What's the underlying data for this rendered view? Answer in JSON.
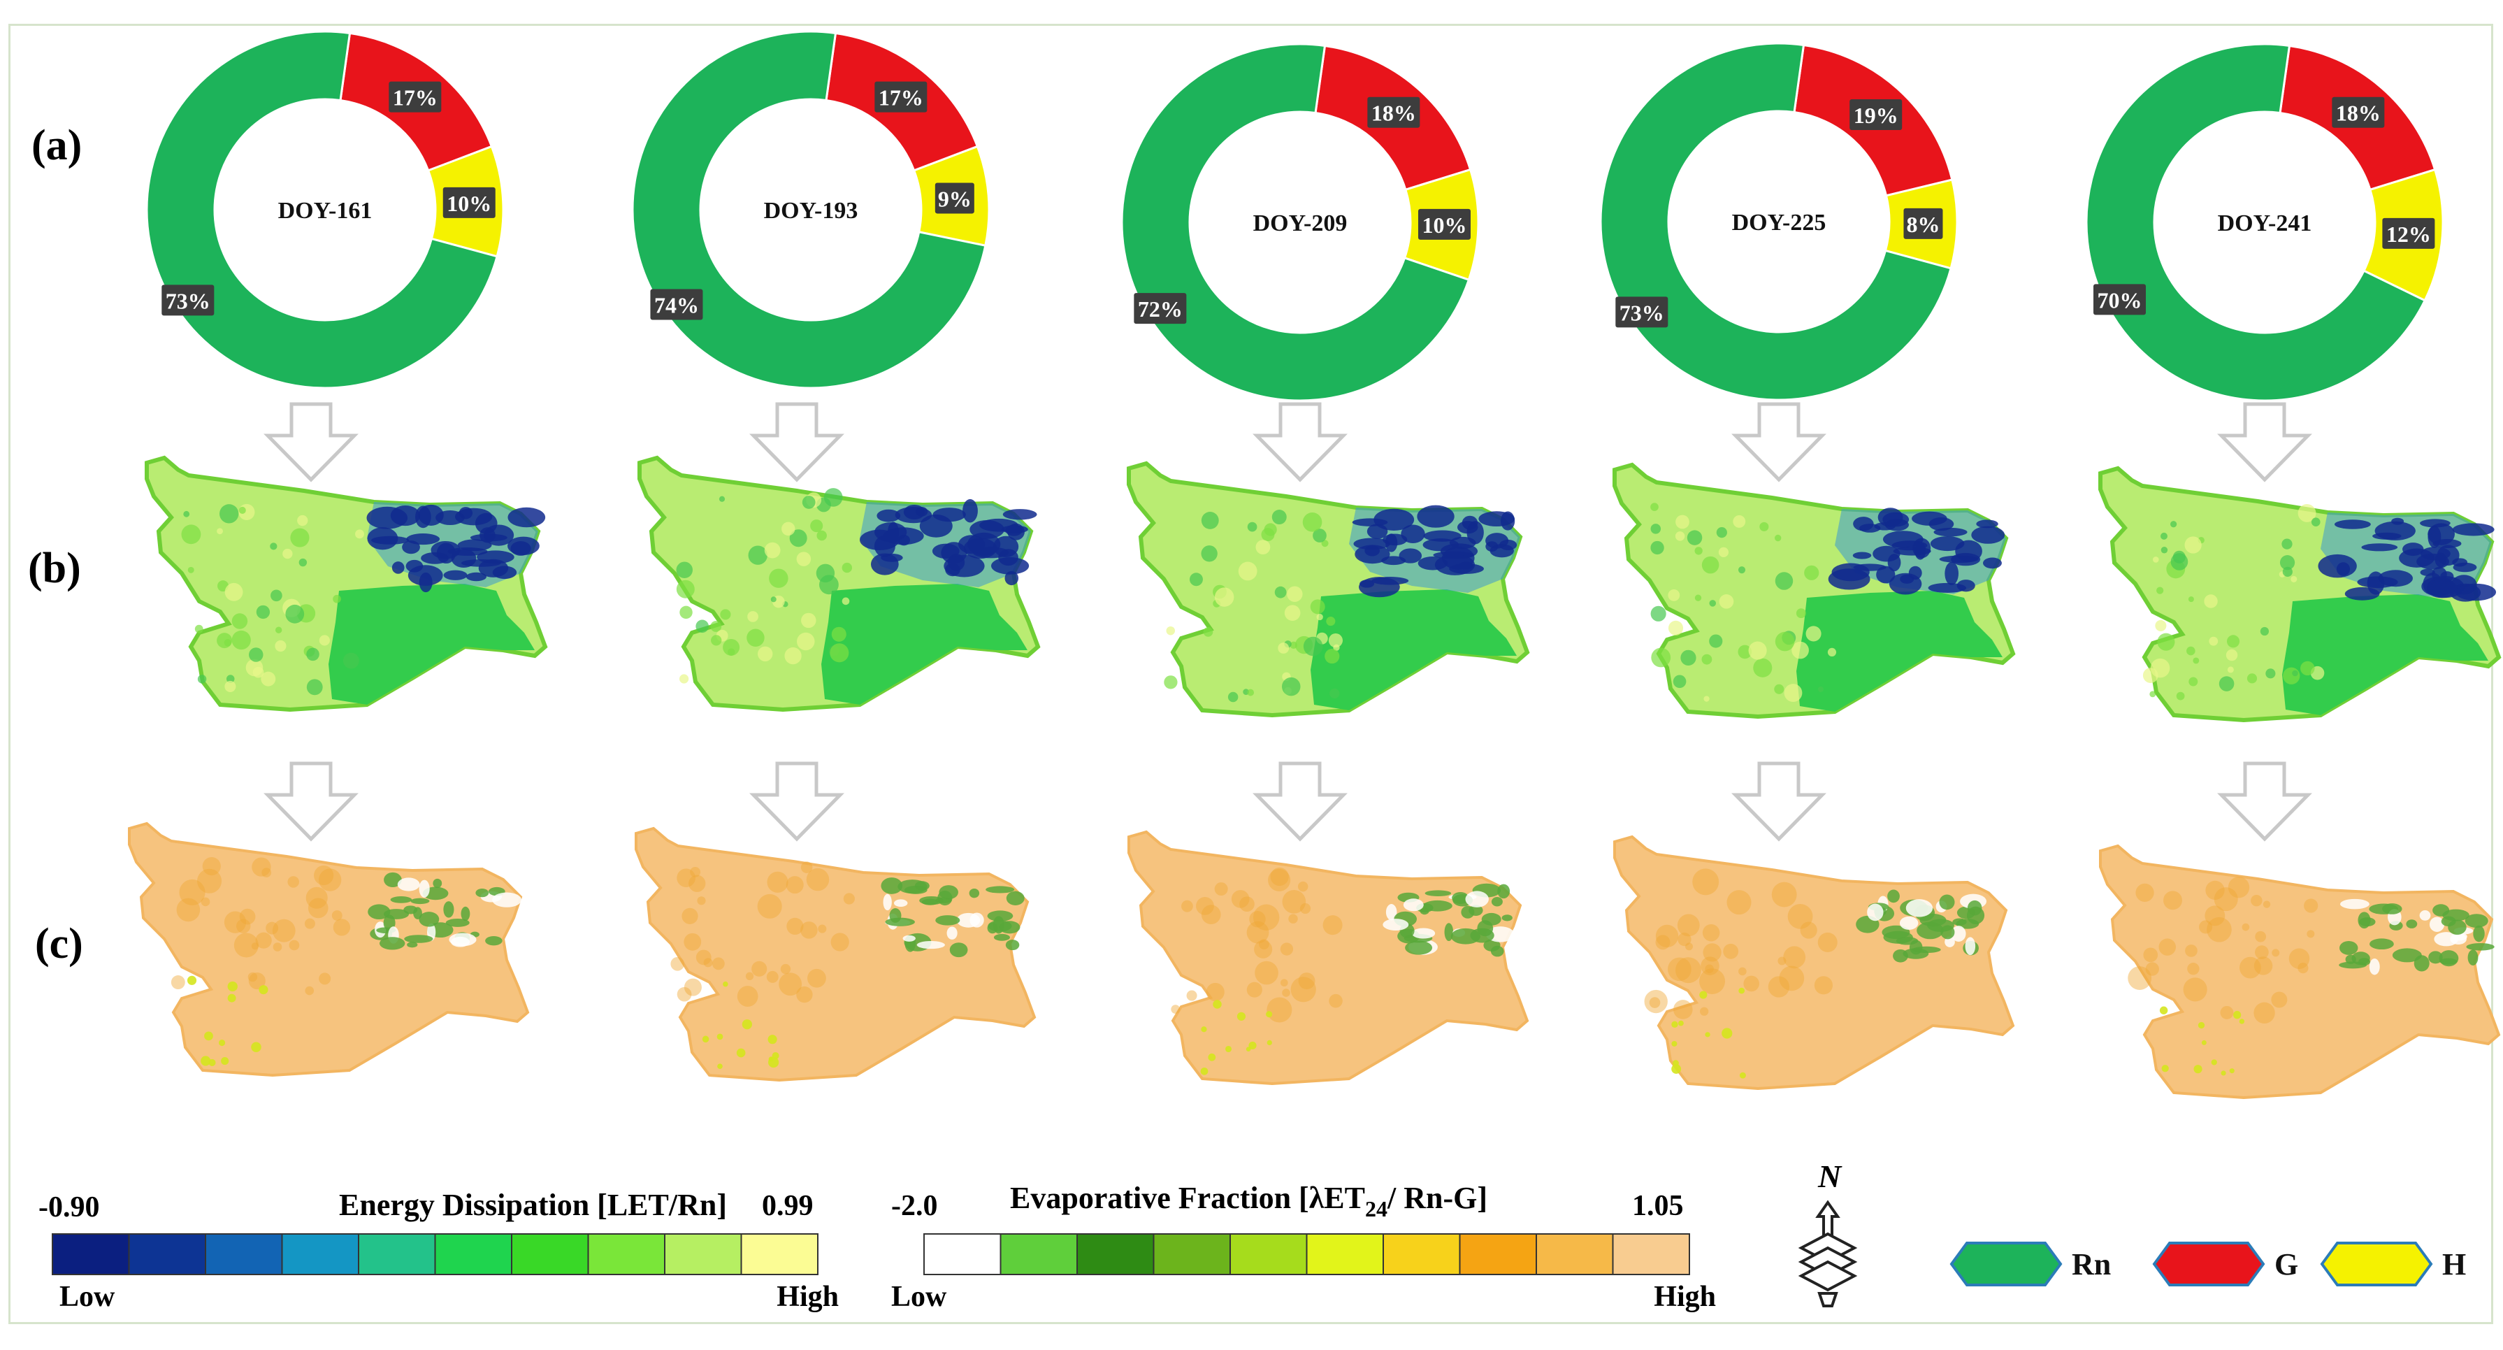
{
  "row_labels": [
    "(a)",
    "(b)",
    "(c)"
  ],
  "colors": {
    "Rn": "#1db35a",
    "G": "#e8141b",
    "H": "#f5f200",
    "arrow": "#c8c8c8",
    "map_b_main": "#b9ec72",
    "map_b_south": "#33cc4c",
    "map_b_wet": "#102a8e",
    "map_c_main": "#f6c37e",
    "map_c_wet": "#58a83a"
  },
  "chart_data": {
    "type": "pie",
    "donut": true,
    "series_names": [
      "Rn",
      "G",
      "H"
    ],
    "charts": [
      {
        "title": "DOY-161",
        "values": [
          73,
          17,
          10
        ],
        "labels": [
          "73%",
          "17%",
          "10%"
        ]
      },
      {
        "title": "DOY-193",
        "values": [
          74,
          17,
          9
        ],
        "labels": [
          "74%",
          "17%",
          "9%"
        ]
      },
      {
        "title": "DOY-209",
        "values": [
          72,
          18,
          10
        ],
        "labels": [
          "72%",
          "18%",
          "10%"
        ]
      },
      {
        "title": "DOY-225",
        "values": [
          73,
          19,
          8
        ],
        "labels": [
          "73%",
          "19%",
          "8%"
        ]
      },
      {
        "title": "DOY-241",
        "values": [
          70,
          18,
          12
        ],
        "labels": [
          "70%",
          "18%",
          "12%"
        ]
      }
    ]
  },
  "legend_energy": {
    "title": "Energy Dissipation [LET/Rn]",
    "min": "-0.90",
    "max": "0.99",
    "low": "Low",
    "high": "High",
    "colors": [
      "#0b1f80",
      "#0d3494",
      "#1264b4",
      "#1496c4",
      "#23c28a",
      "#1fd44e",
      "#39d827",
      "#7ae639",
      "#b6ef62",
      "#fbfc94"
    ]
  },
  "legend_ef": {
    "title_prefix": "Evaporative Fraction [λET",
    "title_sub": "24",
    "title_suffix": "/ Rn-G]",
    "min": "-2.0",
    "max": "1.05",
    "low": "Low",
    "high": "High",
    "colors": [
      "#ffffff",
      "#5fcf3b",
      "#2e8b14",
      "#6cb41c",
      "#a6dc1c",
      "#e2f41a",
      "#f7d21b",
      "#f5a413",
      "#f6b948",
      "#f8cc90"
    ]
  },
  "north_label": "N",
  "component_legend": [
    {
      "key": "Rn",
      "label": "Rn"
    },
    {
      "key": "G",
      "label": "G"
    },
    {
      "key": "H",
      "label": "H"
    }
  ]
}
